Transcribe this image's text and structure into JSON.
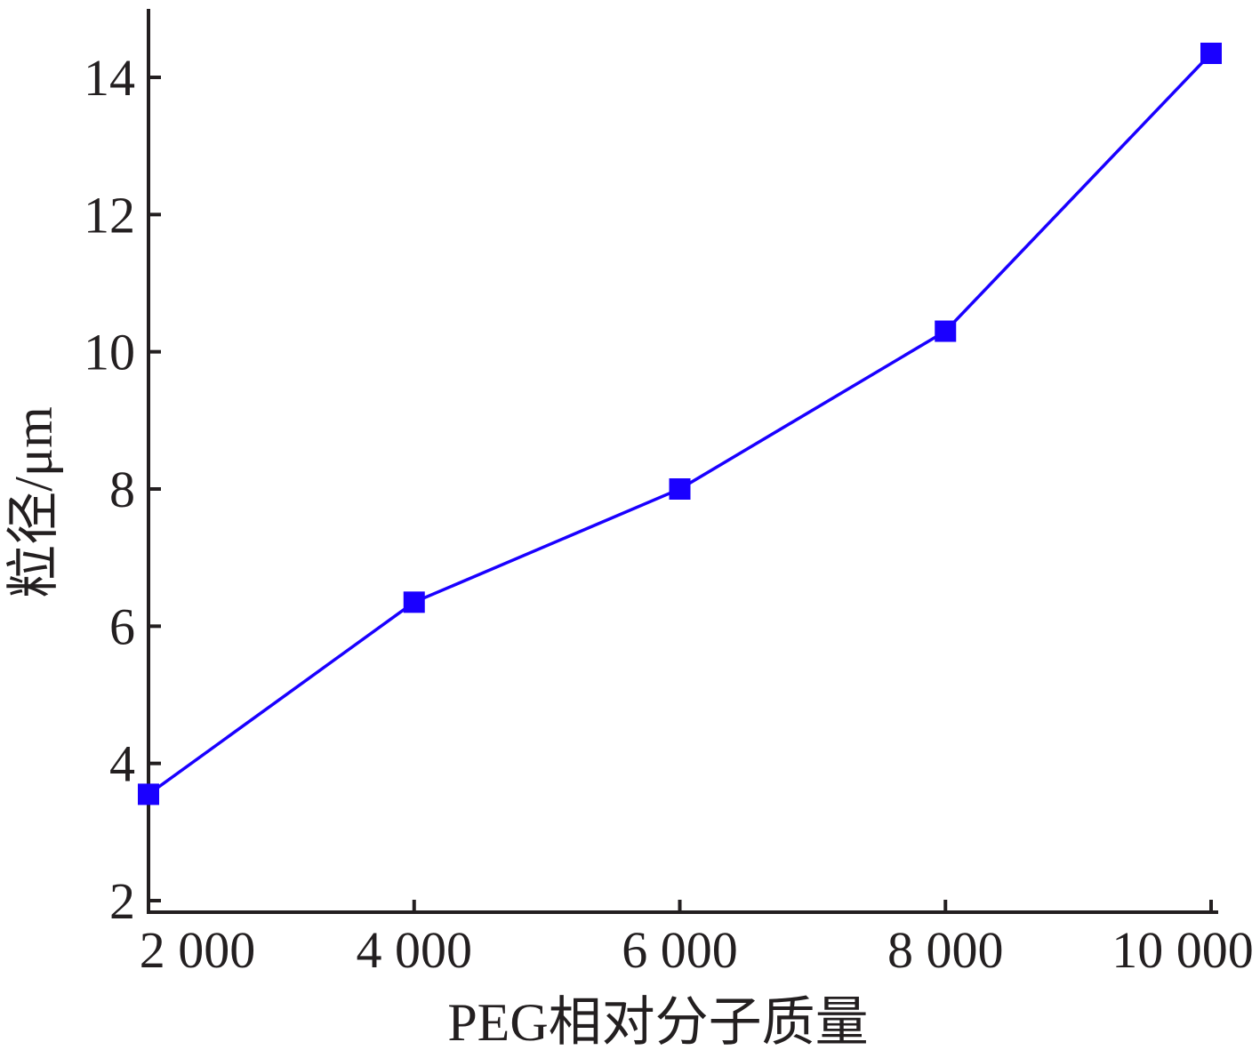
{
  "chart_data": {
    "type": "line",
    "title": "",
    "xlabel": "PEG相对分子质量",
    "ylabel": "粒径/μm",
    "x": [
      2000,
      4000,
      6000,
      8000,
      10000
    ],
    "x_tick_labels": [
      "2 000",
      "4 000",
      "6 000",
      "8 000",
      "10 000"
    ],
    "y_ticks": [
      2,
      4,
      6,
      8,
      10,
      12,
      14
    ],
    "y_tick_labels": [
      "2",
      "4",
      "6",
      "8",
      "10",
      "12",
      "14"
    ],
    "xlim": [
      2000,
      10000
    ],
    "ylim": [
      2,
      15
    ],
    "grid": false,
    "legend": "none",
    "series": [
      {
        "values": [
          3.55,
          6.35,
          8.0,
          10.3,
          14.35
        ],
        "color": "#1a00ff",
        "marker": "square"
      }
    ]
  }
}
